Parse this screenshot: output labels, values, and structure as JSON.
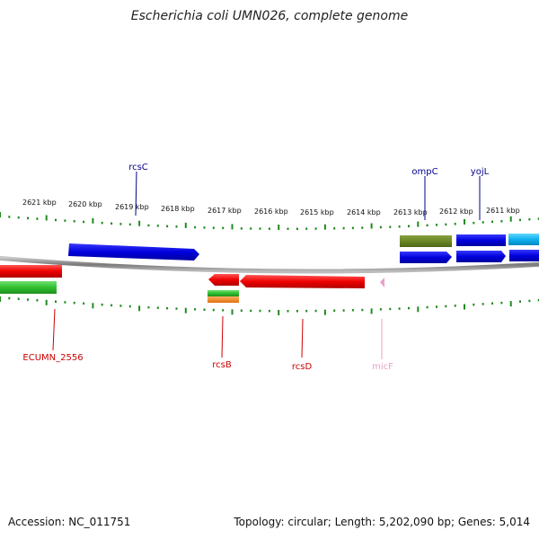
{
  "header": {
    "title": "Escherichia coli UMN026, complete genome"
  },
  "footer": {
    "accession": "Accession: NC_011751",
    "summary": "Topology: circular; Length: 5,202,090 bp; Genes: 5,014"
  },
  "colors": {
    "backbone": "#8c8c8c",
    "tick": "#1f8a1f",
    "label_top": "#00008b",
    "label_bottom": "#cc0000",
    "label_rna": "#e8a0c8"
  },
  "scale_labels": [
    {
      "text": "2621 kbp",
      "kbp": 2621
    },
    {
      "text": "2620 kbp",
      "kbp": 2620
    },
    {
      "text": "2619 kbp",
      "kbp": 2619
    },
    {
      "text": "2618 kbp",
      "kbp": 2618
    },
    {
      "text": "2617 kbp",
      "kbp": 2617
    },
    {
      "text": "2616 kbp",
      "kbp": 2616
    },
    {
      "text": "2615 kbp",
      "kbp": 2615
    },
    {
      "text": "2614 kbp",
      "kbp": 2614
    },
    {
      "text": "2613 kbp",
      "kbp": 2613
    },
    {
      "text": "2612 kbp",
      "kbp": 2612
    },
    {
      "text": "2611 kbp",
      "kbp": 2611
    }
  ],
  "gene_labels": [
    {
      "name": "rcsC",
      "color": "#00008b",
      "side": "top"
    },
    {
      "name": "ompC",
      "color": "#00008b",
      "side": "top"
    },
    {
      "name": "yojL",
      "color": "#00008b",
      "side": "top"
    },
    {
      "name": "ECUMN_2556",
      "color": "#cc0000",
      "side": "bottom"
    },
    {
      "name": "rcsB",
      "color": "#cc0000",
      "side": "bottom"
    },
    {
      "name": "rcsD",
      "color": "#cc0000",
      "side": "bottom"
    },
    {
      "name": "micF",
      "color": "#e8a0c8",
      "side": "bottom"
    }
  ]
}
